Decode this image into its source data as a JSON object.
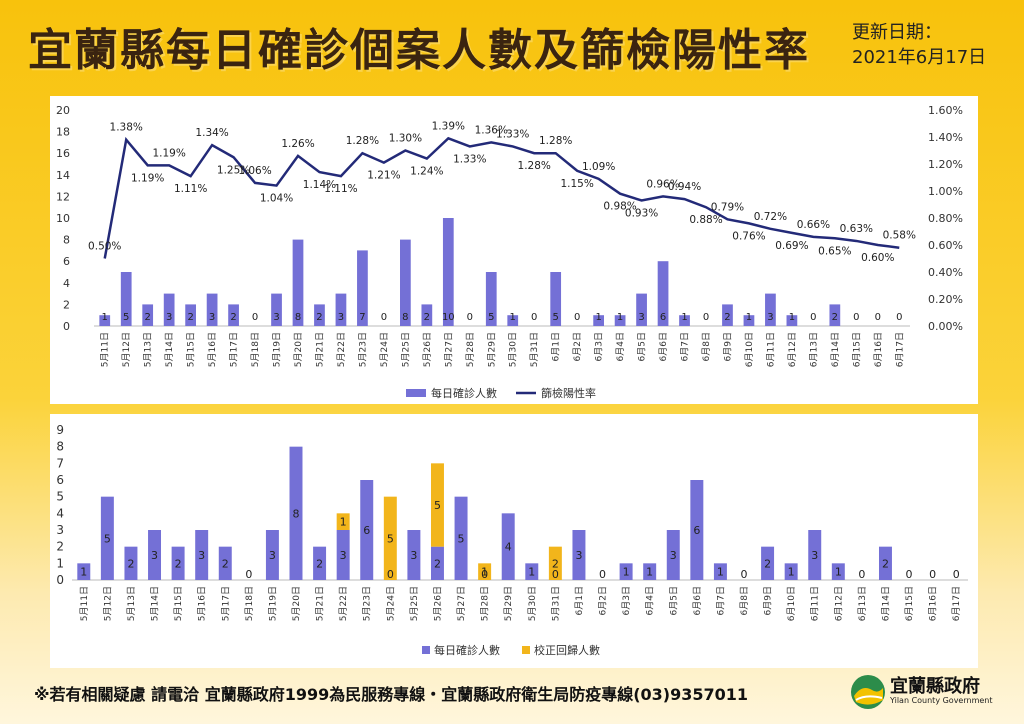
{
  "header": {
    "title": "宜蘭縣每日確診個案人數及篩檢陽性率",
    "update_label": "更新日期：",
    "update_date": "2021年6月17日"
  },
  "footer": {
    "note": "※若有相關疑慮 請電洽  宜蘭縣政府1999為民服務專線・宜蘭縣政府衛生局防疫專線(03)9357011"
  },
  "logo": {
    "name": "宜蘭縣政府",
    "subtitle": "Yilan County Government"
  },
  "colors": {
    "bar": "#7470d6",
    "line": "#232a78",
    "corrected": "#f2b51b"
  },
  "chart_data": [
    {
      "type": "bar+line",
      "categories": [
        "5月11日",
        "5月12日",
        "5月13日",
        "5月14日",
        "5月15日",
        "5月16日",
        "5月17日",
        "5月18日",
        "5月19日",
        "5月20日",
        "5月21日",
        "5月22日",
        "5月23日",
        "5月24日",
        "5月25日",
        "5月26日",
        "5月27日",
        "5月28日",
        "5月29日",
        "5月30日",
        "5月31日",
        "6月1日",
        "6月2日",
        "6月3日",
        "6月4日",
        "6月5日",
        "6月6日",
        "6月7日",
        "6月8日",
        "6月9日",
        "6月10日",
        "6月11日",
        "6月12日",
        "6月13日",
        "6月14日",
        "6月15日",
        "6月16日",
        "6月17日"
      ],
      "series": [
        {
          "name": "每日確診人數",
          "axis": "left",
          "values": [
            1,
            5,
            2,
            3,
            2,
            3,
            2,
            0,
            3,
            8,
            2,
            3,
            7,
            0,
            8,
            2,
            10,
            0,
            5,
            1,
            0,
            5,
            0,
            1,
            1,
            3,
            6,
            1,
            0,
            2,
            1,
            3,
            1,
            0,
            2,
            0,
            0,
            0
          ]
        },
        {
          "name": "篩檢陽性率",
          "axis": "right",
          "values": [
            0.5,
            1.38,
            1.19,
            1.19,
            1.11,
            1.34,
            1.25,
            1.06,
            1.04,
            1.26,
            1.14,
            1.11,
            1.28,
            1.21,
            1.3,
            1.24,
            1.39,
            1.33,
            1.36,
            1.33,
            1.28,
            1.28,
            1.15,
            1.09,
            0.98,
            0.93,
            0.96,
            0.94,
            0.88,
            0.79,
            0.76,
            0.72,
            0.69,
            0.66,
            0.65,
            0.63,
            0.6,
            0.58
          ],
          "labels": [
            "0.50%",
            "1.38%",
            "1.19%",
            "1.19%",
            "1.11%",
            "1.34%",
            "1.25%",
            "1.06%",
            "1.04%",
            "1.26%",
            "1.14%",
            "1.11%",
            "1.28%",
            "1.21%",
            "1.30%",
            "1.24%",
            "1.39%",
            "1.33%",
            "1.36%",
            "1.33%",
            "1.28%",
            "1.28%",
            "1.15%",
            "1.09%",
            "0.98%",
            "0.93%",
            "0.96%",
            "0.94%",
            "0.88%",
            "0.79%",
            "0.76%",
            "0.72%",
            "0.69%",
            "0.66%",
            "0.65%",
            "0.63%",
            "0.60%",
            "0.58%"
          ]
        }
      ],
      "ylim_left": [
        0,
        20
      ],
      "yticks_left": [
        "0",
        "2",
        "4",
        "6",
        "8",
        "10",
        "12",
        "14",
        "16",
        "18",
        "20"
      ],
      "ylim_right": [
        0,
        1.6
      ],
      "yticks_right": [
        "0.00%",
        "0.20%",
        "0.40%",
        "0.60%",
        "0.80%",
        "1.00%",
        "1.20%",
        "1.40%",
        "1.60%"
      ],
      "legend": "bottom",
      "grid": false
    },
    {
      "type": "stacked-bar",
      "categories": [
        "5月11日",
        "5月12日",
        "5月13日",
        "5月14日",
        "5月15日",
        "5月16日",
        "5月17日",
        "5月18日",
        "5月19日",
        "5月20日",
        "5月21日",
        "5月22日",
        "5月23日",
        "5月24日",
        "5月25日",
        "5月26日",
        "5月27日",
        "5月28日",
        "5月29日",
        "5月30日",
        "5月31日",
        "6月1日",
        "6月2日",
        "6月3日",
        "6月4日",
        "6月5日",
        "6月6日",
        "6月7日",
        "6月8日",
        "6月9日",
        "6月10日",
        "6月11日",
        "6月12日",
        "6月13日",
        "6月14日",
        "6月15日",
        "6月16日",
        "6月17日"
      ],
      "series": [
        {
          "name": "每日確診人數",
          "values": [
            1,
            5,
            2,
            3,
            2,
            3,
            2,
            0,
            3,
            8,
            2,
            3,
            6,
            0,
            3,
            2,
            5,
            0,
            4,
            1,
            0,
            3,
            0,
            1,
            1,
            3,
            6,
            1,
            0,
            2,
            1,
            3,
            1,
            0,
            2,
            0,
            0,
            0
          ]
        },
        {
          "name": "校正回歸人數",
          "values": [
            0,
            0,
            0,
            0,
            0,
            0,
            0,
            0,
            0,
            0,
            0,
            1,
            0,
            5,
            0,
            5,
            0,
            1,
            0,
            0,
            2,
            0,
            0,
            0,
            0,
            0,
            0,
            0,
            0,
            0,
            0,
            0,
            0,
            0,
            0,
            0,
            0,
            0
          ]
        }
      ],
      "ylim": [
        0,
        9
      ],
      "yticks": [
        "0",
        "1",
        "2",
        "3",
        "4",
        "5",
        "6",
        "7",
        "8",
        "9"
      ],
      "legend": "bottom",
      "grid": false
    }
  ]
}
